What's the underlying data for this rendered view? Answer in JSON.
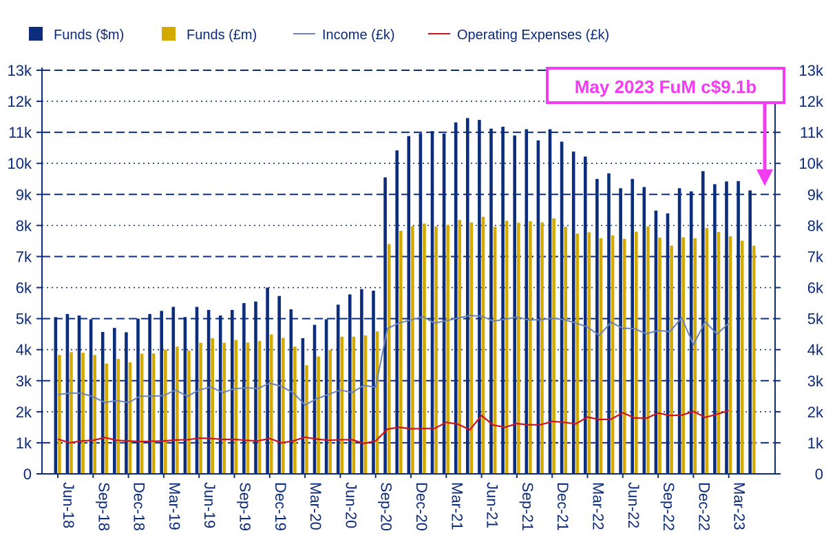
{
  "chart_data": {
    "type": "bar",
    "title": "",
    "xlabel": "",
    "ylabel": "",
    "ylim": [
      0,
      13000
    ],
    "yticks": [
      "0",
      "1k",
      "2k",
      "3k",
      "4k",
      "5k",
      "6k",
      "7k",
      "8k",
      "9k",
      "10k",
      "11k",
      "12k",
      "13k"
    ],
    "grid": "horizontal dashed",
    "legend_position": "top",
    "x_tick_labels": [
      "Jun-18",
      "Sep-18",
      "Dec-18",
      "Mar-19",
      "Jun-19",
      "Sep-19",
      "Dec-19",
      "Mar-20",
      "Jun-20",
      "Sep-20",
      "Dec-20",
      "Mar-21",
      "Jun-21",
      "Sep-21",
      "Dec-21",
      "Mar-22",
      "Jun-22",
      "Sep-22",
      "Dec-22",
      "Mar-23"
    ],
    "x_tick_every": 3,
    "series": [
      {
        "name": "Funds ($m)",
        "kind": "bar",
        "color": "#0b2d7c",
        "values": [
          5050,
          5150,
          5100,
          4980,
          4570,
          4700,
          4560,
          5000,
          5150,
          5250,
          5380,
          5050,
          5380,
          5280,
          5100,
          5280,
          5500,
          5550,
          6000,
          5730,
          5300,
          4370,
          4800,
          4980,
          5450,
          5780,
          5950,
          5900,
          9550,
          10420,
          10880,
          10970,
          11040,
          10960,
          11320,
          11460,
          11400,
          11120,
          11180,
          10900,
          11100,
          10740,
          11100,
          10700,
          10380,
          10220,
          9500,
          9680,
          9200,
          9500,
          9240,
          8480,
          8390,
          9200,
          9100,
          9750,
          9330,
          9420,
          9430,
          9130
        ]
      },
      {
        "name": "Funds (£m)",
        "kind": "bar",
        "color": "#d4aa00",
        "values": [
          3830,
          3920,
          3900,
          3830,
          3550,
          3700,
          3590,
          3870,
          3880,
          4000,
          4100,
          3970,
          4220,
          4370,
          4220,
          4310,
          4230,
          4280,
          4490,
          4380,
          4100,
          3500,
          3780,
          3990,
          4420,
          4420,
          4460,
          4590,
          7400,
          7830,
          7980,
          8060,
          7970,
          8020,
          8180,
          8100,
          8280,
          7960,
          8150,
          8090,
          8140,
          8100,
          8230,
          7960,
          7740,
          7780,
          7590,
          7680,
          7570,
          7800,
          7970,
          7610,
          7350,
          7620,
          7590,
          7920,
          7790,
          7650,
          7510,
          7350
        ]
      },
      {
        "name": "Income (£k)",
        "kind": "line",
        "color": "#6a83b5",
        "values": [
          2550,
          2600,
          2600,
          2480,
          2300,
          2360,
          2300,
          2500,
          2500,
          2520,
          2700,
          2500,
          2700,
          2800,
          2620,
          2740,
          2770,
          2750,
          2920,
          2820,
          2610,
          2220,
          2420,
          2560,
          2700,
          2620,
          2850,
          2790,
          4680,
          4860,
          4960,
          5060,
          4860,
          4930,
          5020,
          5100,
          5080,
          4920,
          4980,
          5050,
          4960,
          4960,
          5010,
          4970,
          4860,
          4730,
          4460,
          4880,
          4690,
          4680,
          4510,
          4620,
          4580,
          5030,
          4160,
          4900,
          4500,
          4850
        ]
      },
      {
        "name": "Operating Expenses (£k)",
        "kind": "line",
        "color": "#c8141e",
        "values": [
          1120,
          1000,
          1060,
          1080,
          1170,
          1080,
          1060,
          1040,
          1050,
          1060,
          1090,
          1100,
          1150,
          1140,
          1110,
          1110,
          1080,
          1060,
          1140,
          1000,
          1060,
          1180,
          1120,
          1080,
          1100,
          1100,
          980,
          1060,
          1440,
          1500,
          1450,
          1460,
          1460,
          1660,
          1600,
          1420,
          1880,
          1570,
          1500,
          1620,
          1580,
          1580,
          1690,
          1660,
          1610,
          1830,
          1750,
          1760,
          1970,
          1800,
          1790,
          1960,
          1880,
          1890,
          2010,
          1820,
          1920,
          2040
        ]
      }
    ],
    "annotation": {
      "text": "May 2023 FuM c$9.1b",
      "color": "#f23cf2"
    }
  }
}
